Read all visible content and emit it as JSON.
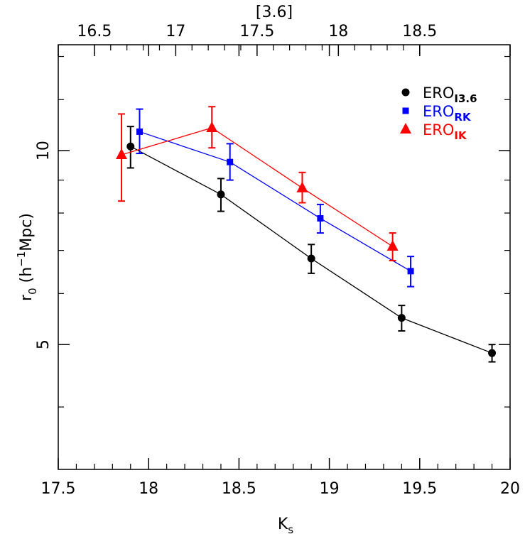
{
  "chart_data": {
    "type": "scatter",
    "xlabel": "K",
    "xlabel_sub": "s",
    "ylabel": "r",
    "ylabel_sub": "0",
    "ylabel_rest": " (h",
    "ylabel_sup": "−1",
    "ylabel_end": "Mpc)",
    "top_axis_label": "[3.6]",
    "xlim": [
      17.5,
      20.0
    ],
    "ylim_log": [
      3.2,
      14.6
    ],
    "y_scale": "log",
    "x_ticks": [
      "17.5",
      "18",
      "18.5",
      "19",
      "19.5",
      "20"
    ],
    "x_tick_values": [
      17.5,
      18.0,
      18.5,
      19.0,
      19.5,
      20.0
    ],
    "top_ticks": [
      "16.5",
      "17",
      "17.5",
      "18",
      "18.5"
    ],
    "top_tick_ks_values": [
      17.7,
      18.15,
      18.6,
      19.05,
      19.5
    ],
    "y_ticks": [
      "5",
      "10"
    ],
    "y_tick_values": [
      5,
      10
    ],
    "y_minor_ticks": [
      4,
      6,
      7,
      8,
      9,
      12,
      14
    ],
    "series": [
      {
        "name": "ERO",
        "name_sub": "I3.6",
        "marker": "circle",
        "color": "#000000",
        "x": [
          17.9,
          18.4,
          18.9,
          19.4,
          19.9
        ],
        "y": [
          10.15,
          8.55,
          6.8,
          5.5,
          4.85
        ],
        "yerr_low": [
          9.4,
          8.05,
          6.45,
          5.25,
          4.7
        ],
        "yerr_high": [
          10.9,
          9.05,
          7.15,
          5.75,
          5.0
        ]
      },
      {
        "name": "ERO",
        "name_sub": "RK",
        "marker": "square",
        "color": "#0000ff",
        "x": [
          17.95,
          18.45,
          18.95,
          19.45
        ],
        "y": [
          10.7,
          9.6,
          7.85,
          6.5
        ],
        "yerr_low": [
          9.9,
          9.0,
          7.45,
          6.15
        ],
        "yerr_high": [
          11.6,
          10.25,
          8.25,
          6.85
        ]
      },
      {
        "name": "ERO",
        "name_sub": "IK",
        "marker": "triangle",
        "color": "#ff0000",
        "x": [
          17.85,
          18.35,
          18.85,
          19.35
        ],
        "y": [
          9.85,
          10.85,
          8.75,
          7.1
        ],
        "yerr_low": [
          8.35,
          10.1,
          8.3,
          6.75
        ],
        "yerr_high": [
          11.4,
          11.7,
          9.25,
          7.45
        ]
      }
    ],
    "legend_position": "top-right"
  }
}
